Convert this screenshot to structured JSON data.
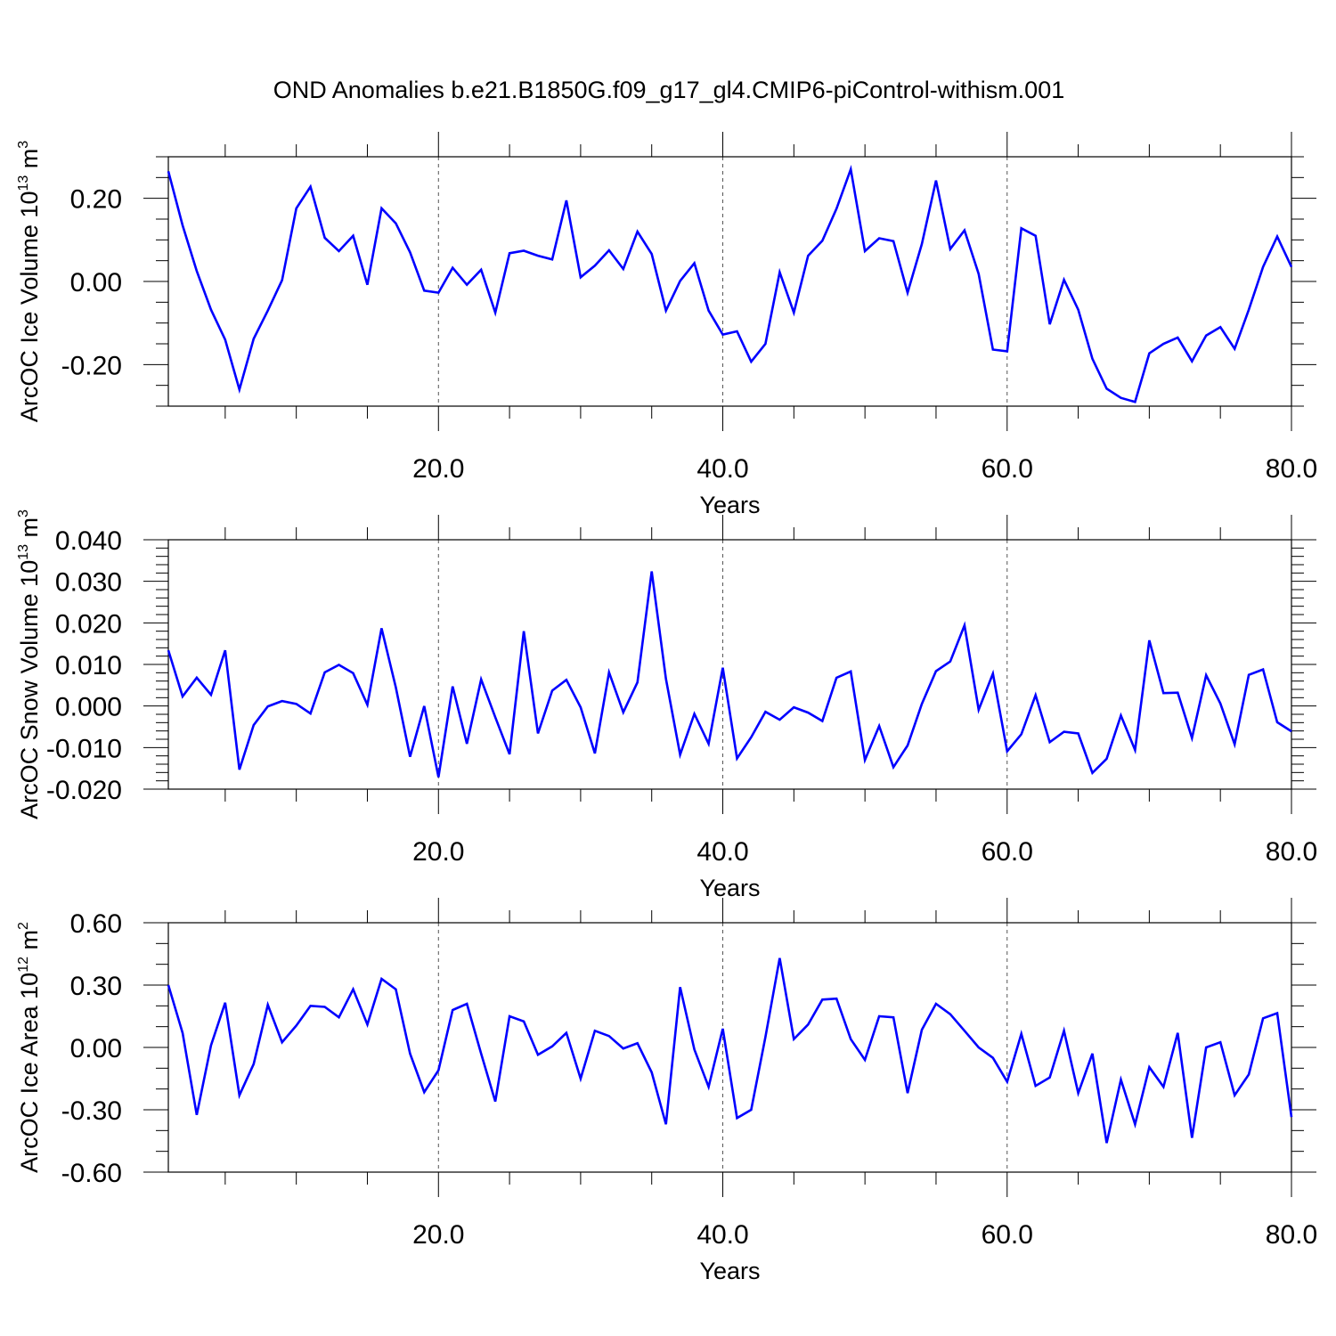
{
  "title": "OND Anomalies b.e21.B1850G.f09_g17_gl4.CMIP6-piControl-withism.001",
  "colors": {
    "line": "#0000ff",
    "frame": "#000000",
    "grid": "#555555"
  },
  "chart_data": [
    {
      "type": "line",
      "ylabel_main": "ArcOC Ice Volume 10",
      "ylabel_exp": "13",
      "ylabel_unit": " m",
      "ylabel_unit_exp": "3",
      "xlabel": "Years",
      "xlim": [
        1,
        80
      ],
      "ylim": [
        -0.3,
        0.3
      ],
      "xticks": [
        20,
        40,
        60,
        80
      ],
      "xtick_labels": [
        "20.0",
        "40.0",
        "60.0",
        "80.0"
      ],
      "xgrid": [
        20,
        40,
        60
      ],
      "yticks": [
        -0.2,
        0.0,
        0.2
      ],
      "ytick_labels": [
        "-0.20",
        "0.00",
        "0.20"
      ],
      "yminor_step": 0.05,
      "series": [
        {
          "values": [
            0.265,
            0.135,
            0.025,
            -0.068,
            -0.14,
            -0.26,
            -0.138,
            -0.07,
            0.003,
            0.176,
            0.228,
            0.105,
            0.073,
            0.11,
            -0.008,
            0.176,
            0.14,
            0.07,
            -0.022,
            -0.027,
            0.033,
            -0.008,
            0.028,
            -0.075,
            0.068,
            0.074,
            0.062,
            0.053,
            0.195,
            0.01,
            0.038,
            0.075,
            0.03,
            0.12,
            0.066,
            -0.07,
            0.001,
            0.044,
            -0.07,
            -0.128,
            -0.12,
            -0.193,
            -0.15,
            0.022,
            -0.075,
            0.062,
            0.098,
            0.175,
            0.27,
            0.073,
            0.104,
            0.097,
            -0.027,
            0.09,
            0.243,
            0.078,
            0.123,
            0.018,
            -0.164,
            -0.168,
            0.128,
            0.11,
            -0.103,
            0.004,
            -0.068,
            -0.186,
            -0.258,
            -0.28,
            -0.29,
            -0.173,
            -0.15,
            -0.135,
            -0.192,
            -0.13,
            -0.11,
            -0.162,
            -0.068,
            0.035,
            0.108,
            0.035
          ]
        }
      ]
    },
    {
      "type": "line",
      "ylabel_main": "ArcOC Snow Volume 10",
      "ylabel_exp": "13",
      "ylabel_unit": " m",
      "ylabel_unit_exp": "3",
      "xlabel": "Years",
      "xlim": [
        1,
        80
      ],
      "ylim": [
        -0.02,
        0.04
      ],
      "xticks": [
        20,
        40,
        60,
        80
      ],
      "xtick_labels": [
        "20.0",
        "40.0",
        "60.0",
        "80.0"
      ],
      "xgrid": [
        20,
        40,
        60
      ],
      "yticks": [
        -0.02,
        -0.01,
        0.0,
        0.01,
        0.02,
        0.03,
        0.04
      ],
      "ytick_labels": [
        "-0.020",
        "-0.010",
        "0.000",
        "0.010",
        "0.020",
        "0.030",
        "0.040"
      ],
      "yminor_step": 0.002,
      "series": [
        {
          "values": [
            0.0134,
            0.0023,
            0.0068,
            0.0027,
            0.0134,
            -0.0153,
            -0.0046,
            -0.0001,
            0.0012,
            0.0005,
            -0.0018,
            0.0081,
            0.0099,
            0.0079,
            0.0003,
            0.0187,
            0.0045,
            -0.0122,
            0.0,
            -0.0171,
            0.0047,
            -0.0091,
            0.0064,
            -0.0027,
            -0.0116,
            0.018,
            -0.0066,
            0.0037,
            0.0063,
            -0.0003,
            -0.0114,
            0.0081,
            -0.0015,
            0.0057,
            0.0324,
            0.0065,
            -0.0117,
            -0.0019,
            -0.0091,
            0.0092,
            -0.0126,
            -0.0075,
            -0.0014,
            -0.0033,
            -0.0003,
            -0.0016,
            -0.0036,
            0.0068,
            0.0083,
            -0.013,
            -0.0048,
            -0.0147,
            -0.0095,
            0.0005,
            0.0084,
            0.0107,
            0.0194,
            -0.0009,
            0.0078,
            -0.0109,
            -0.0068,
            0.0026,
            -0.0087,
            -0.0062,
            -0.0066,
            -0.0161,
            -0.0127,
            -0.0023,
            -0.0106,
            0.0158,
            0.0031,
            0.0032,
            -0.0077,
            0.0074,
            0.0006,
            -0.0092,
            0.0075,
            0.0088,
            -0.0039,
            -0.0061
          ]
        }
      ]
    },
    {
      "type": "line",
      "ylabel_main": "ArcOC Ice Area 10",
      "ylabel_exp": "12",
      "ylabel_unit": " m",
      "ylabel_unit_exp": "2",
      "xlabel": "Years",
      "xlim": [
        1,
        80
      ],
      "ylim": [
        -0.6,
        0.6
      ],
      "xticks": [
        20,
        40,
        60,
        80
      ],
      "xtick_labels": [
        "20.0",
        "40.0",
        "60.0",
        "80.0"
      ],
      "xgrid": [
        20,
        40,
        60
      ],
      "yticks": [
        -0.6,
        -0.3,
        0.0,
        0.3,
        0.6
      ],
      "ytick_labels": [
        "-0.60",
        "-0.30",
        "0.00",
        "0.30",
        "0.60"
      ],
      "yminor_step": 0.1,
      "series": [
        {
          "values": [
            0.3,
            0.07,
            -0.325,
            0.01,
            0.215,
            -0.23,
            -0.08,
            0.205,
            0.025,
            0.105,
            0.2,
            0.195,
            0.145,
            0.28,
            0.11,
            0.33,
            0.28,
            -0.03,
            -0.215,
            -0.11,
            0.18,
            0.21,
            -0.03,
            -0.26,
            0.15,
            0.125,
            -0.035,
            0.005,
            0.07,
            -0.15,
            0.08,
            0.055,
            -0.005,
            0.02,
            -0.12,
            -0.37,
            0.29,
            -0.01,
            -0.19,
            0.09,
            -0.34,
            -0.3,
            0.05,
            0.43,
            0.04,
            0.11,
            0.23,
            0.235,
            0.04,
            -0.06,
            0.15,
            0.145,
            -0.22,
            0.085,
            0.21,
            0.16,
            0.08,
            0.0,
            -0.05,
            -0.165,
            0.065,
            -0.185,
            -0.145,
            0.08,
            -0.22,
            -0.03,
            -0.46,
            -0.155,
            -0.37,
            -0.095,
            -0.19,
            0.07,
            -0.435,
            -0.0,
            0.025,
            -0.23,
            -0.13,
            0.14,
            0.165,
            -0.335
          ]
        }
      ]
    }
  ]
}
